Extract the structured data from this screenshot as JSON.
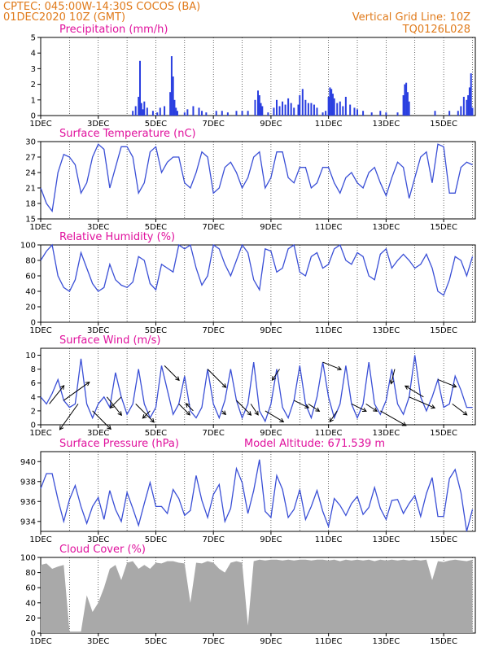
{
  "header": {
    "line1": "CPTEC:   045:00W-14:30S   COCOS (BA)",
    "line2": "01DEC2020 10Z (GMT)",
    "grid_note": "Vertical Grid Line: 10Z",
    "code": "TQ0126L028"
  },
  "x_axis": {
    "labels": [
      "1DEC",
      "3DEC",
      "5DEC",
      "7DEC",
      "9DEC",
      "11DEC",
      "13DEC",
      "15DEC"
    ],
    "label_days": [
      1,
      3,
      5,
      7,
      9,
      11,
      13,
      15
    ],
    "range_days": [
      1,
      16.1
    ]
  },
  "colors": {
    "line": "#3a4fd6",
    "bar": "#2a3fe0",
    "cloud": "#a9a9a9",
    "title": "#e0119d",
    "header": "#e07a1a"
  },
  "chart_data": [
    {
      "type": "bar",
      "title": "Precipitation (mm/h)",
      "ylim": [
        0,
        5
      ],
      "yticks": [
        0,
        1,
        2,
        3,
        4,
        5
      ],
      "x": [
        4.2,
        4.3,
        4.4,
        4.45,
        4.5,
        4.55,
        4.6,
        4.7,
        4.9,
        5.05,
        5.15,
        5.3,
        5.5,
        5.55,
        5.6,
        5.65,
        5.7,
        5.75,
        6.0,
        6.1,
        6.3,
        6.5,
        6.6,
        6.75,
        7.1,
        7.3,
        7.5,
        7.8,
        8.0,
        8.2,
        8.45,
        8.55,
        8.6,
        8.65,
        8.7,
        8.9,
        9.1,
        9.2,
        9.3,
        9.4,
        9.5,
        9.6,
        9.7,
        9.8,
        9.95,
        10.0,
        10.1,
        10.2,
        10.3,
        10.4,
        10.5,
        10.6,
        10.8,
        10.9,
        11.0,
        11.05,
        11.1,
        11.15,
        11.2,
        11.3,
        11.4,
        11.5,
        11.6,
        11.75,
        11.9,
        12.0,
        12.2,
        12.5,
        12.8,
        13.0,
        13.4,
        13.6,
        13.65,
        13.7,
        13.75,
        13.8,
        14.7,
        15.2,
        15.5,
        15.6,
        15.7,
        15.8,
        15.85,
        15.9,
        15.95,
        16.0
      ],
      "values": [
        0.3,
        0.6,
        1.2,
        3.5,
        0.8,
        0.4,
        0.9,
        0.5,
        0.3,
        0.2,
        0.5,
        0.6,
        1.5,
        3.8,
        2.5,
        1.0,
        0.5,
        0.3,
        0.2,
        0.4,
        0.6,
        0.5,
        0.3,
        0.2,
        0.3,
        0.3,
        0.2,
        0.3,
        0.3,
        0.3,
        1.0,
        1.6,
        1.3,
        0.8,
        0.6,
        0.2,
        0.5,
        1.0,
        0.6,
        0.9,
        0.7,
        1.1,
        0.8,
        0.5,
        0.7,
        1.3,
        1.7,
        1.0,
        0.8,
        0.8,
        0.7,
        0.5,
        0.2,
        0.3,
        1.2,
        1.8,
        1.7,
        1.4,
        1.1,
        0.8,
        0.9,
        0.6,
        1.2,
        0.7,
        0.5,
        0.4,
        0.3,
        0.2,
        0.3,
        0.2,
        0.2,
        1.3,
        2.0,
        2.1,
        1.5,
        0.9,
        0.3,
        0.3,
        0.3,
        0.6,
        1.2,
        1.0,
        1.3,
        1.8,
        2.7,
        0.5
      ]
    },
    {
      "type": "line",
      "title": "Surface Temperature (nC)",
      "ylim": [
        15,
        30
      ],
      "yticks": [
        15,
        18,
        21,
        24,
        27,
        30
      ],
      "x": [
        1.0,
        1.2,
        1.4,
        1.6,
        1.8,
        2.0,
        2.2,
        2.4,
        2.6,
        2.8,
        3.0,
        3.2,
        3.4,
        3.6,
        3.8,
        4.0,
        4.2,
        4.4,
        4.6,
        4.8,
        5.0,
        5.2,
        5.4,
        5.6,
        5.8,
        6.0,
        6.2,
        6.4,
        6.6,
        6.8,
        7.0,
        7.2,
        7.4,
        7.6,
        7.8,
        8.0,
        8.2,
        8.4,
        8.6,
        8.8,
        9.0,
        9.2,
        9.4,
        9.6,
        9.8,
        10.0,
        10.2,
        10.4,
        10.6,
        10.8,
        11.0,
        11.2,
        11.4,
        11.6,
        11.8,
        12.0,
        12.2,
        12.4,
        12.6,
        12.8,
        13.0,
        13.2,
        13.4,
        13.6,
        13.8,
        14.0,
        14.2,
        14.4,
        14.6,
        14.8,
        15.0,
        15.2,
        15.4,
        15.6,
        15.8,
        16.0
      ],
      "values": [
        21,
        18,
        16.5,
        24,
        27.5,
        27,
        25.5,
        20,
        22,
        27,
        29.5,
        28.5,
        21,
        25,
        29,
        29,
        27,
        20,
        22,
        28,
        29,
        24,
        26,
        27,
        27,
        22,
        21,
        24,
        28,
        27,
        20,
        21,
        25,
        26,
        24,
        21,
        23,
        27,
        28,
        21,
        23,
        28,
        28,
        23,
        22,
        25,
        25,
        21,
        22,
        25,
        25,
        22,
        20,
        23,
        24,
        22,
        21,
        24,
        25,
        22,
        19.5,
        23,
        26,
        25,
        19,
        23,
        27,
        28,
        22,
        29.5,
        29,
        20,
        20,
        25,
        26,
        25.5
      ]
    },
    {
      "type": "line",
      "title": "Relative Humidity (%)",
      "ylim": [
        0,
        100
      ],
      "yticks": [
        0,
        20,
        40,
        60,
        80,
        100
      ],
      "x": [
        1.0,
        1.2,
        1.4,
        1.6,
        1.8,
        2.0,
        2.2,
        2.4,
        2.6,
        2.8,
        3.0,
        3.2,
        3.4,
        3.6,
        3.8,
        4.0,
        4.2,
        4.4,
        4.6,
        4.8,
        5.0,
        5.2,
        5.4,
        5.6,
        5.8,
        6.0,
        6.2,
        6.4,
        6.6,
        6.8,
        7.0,
        7.2,
        7.4,
        7.6,
        7.8,
        8.0,
        8.2,
        8.4,
        8.6,
        8.8,
        9.0,
        9.2,
        9.4,
        9.6,
        9.8,
        10.0,
        10.2,
        10.4,
        10.6,
        10.8,
        11.0,
        11.2,
        11.4,
        11.6,
        11.8,
        12.0,
        12.2,
        12.4,
        12.6,
        12.8,
        13.0,
        13.2,
        13.4,
        13.6,
        13.8,
        14.0,
        14.2,
        14.4,
        14.6,
        14.8,
        15.0,
        15.2,
        15.4,
        15.6,
        15.8,
        16.0
      ],
      "values": [
        80,
        92,
        100,
        60,
        45,
        40,
        55,
        90,
        70,
        50,
        40,
        45,
        75,
        55,
        48,
        45,
        52,
        85,
        80,
        50,
        42,
        75,
        70,
        65,
        100,
        95,
        100,
        70,
        48,
        60,
        100,
        95,
        75,
        60,
        80,
        100,
        90,
        55,
        42,
        95,
        92,
        65,
        70,
        95,
        100,
        65,
        60,
        85,
        90,
        70,
        75,
        95,
        100,
        80,
        75,
        90,
        85,
        60,
        55,
        88,
        95,
        70,
        80,
        88,
        80,
        70,
        75,
        88,
        70,
        40,
        35,
        55,
        85,
        80,
        60,
        85
      ]
    },
    {
      "type": "line",
      "title": "Surface Wind (m/s)",
      "ylim": [
        0,
        11
      ],
      "yticks": [
        0,
        2,
        4,
        6,
        8,
        10
      ],
      "x": [
        1.0,
        1.2,
        1.4,
        1.6,
        1.8,
        2.0,
        2.2,
        2.4,
        2.6,
        2.8,
        3.0,
        3.2,
        3.4,
        3.6,
        3.8,
        4.0,
        4.2,
        4.4,
        4.6,
        4.8,
        5.0,
        5.2,
        5.4,
        5.6,
        5.8,
        6.0,
        6.2,
        6.4,
        6.6,
        6.8,
        7.0,
        7.2,
        7.4,
        7.6,
        7.8,
        8.0,
        8.2,
        8.4,
        8.6,
        8.8,
        9.0,
        9.2,
        9.4,
        9.6,
        9.8,
        10.0,
        10.2,
        10.4,
        10.6,
        10.8,
        11.0,
        11.2,
        11.4,
        11.6,
        11.8,
        12.0,
        12.2,
        12.4,
        12.6,
        12.8,
        13.0,
        13.2,
        13.4,
        13.6,
        13.8,
        14.0,
        14.2,
        14.4,
        14.6,
        14.8,
        15.0,
        15.2,
        15.4,
        15.6,
        15.8,
        16.0
      ],
      "values": [
        4,
        3,
        4.5,
        6.5,
        3.5,
        2.5,
        3,
        9.5,
        3,
        1,
        3,
        4,
        2.5,
        7.5,
        4,
        1.5,
        3,
        8,
        3,
        1,
        2.5,
        8.5,
        5,
        1.5,
        3,
        7,
        2,
        1,
        2.5,
        8,
        3,
        1,
        3.5,
        8,
        3.5,
        1,
        3,
        9,
        2,
        0.5,
        3,
        8,
        2.5,
        1,
        3.5,
        8.5,
        3,
        1,
        4,
        9,
        4,
        1,
        3,
        8.5,
        3,
        1,
        3,
        9,
        3,
        1.5,
        3.5,
        8,
        3,
        1.5,
        4,
        10,
        4,
        2,
        4,
        6.5,
        2.5,
        3,
        7,
        5,
        2.5,
        2.5
      ]
    },
    {
      "type": "line",
      "title": "Surface Pressure (hPa)",
      "annotation": "Model Altitude: 671.539  m",
      "ylim": [
        933,
        941
      ],
      "yticks": [
        934,
        936,
        938,
        940
      ],
      "x": [
        1.0,
        1.2,
        1.4,
        1.6,
        1.8,
        2.0,
        2.2,
        2.4,
        2.6,
        2.8,
        3.0,
        3.2,
        3.4,
        3.6,
        3.8,
        4.0,
        4.2,
        4.4,
        4.6,
        4.8,
        5.0,
        5.2,
        5.4,
        5.6,
        5.8,
        6.0,
        6.2,
        6.4,
        6.6,
        6.8,
        7.0,
        7.2,
        7.4,
        7.6,
        7.8,
        8.0,
        8.2,
        8.4,
        8.6,
        8.8,
        9.0,
        9.2,
        9.4,
        9.6,
        9.8,
        10.0,
        10.2,
        10.4,
        10.6,
        10.8,
        11.0,
        11.2,
        11.4,
        11.6,
        11.8,
        12.0,
        12.2,
        12.4,
        12.6,
        12.8,
        13.0,
        13.2,
        13.4,
        13.6,
        13.8,
        14.0,
        14.2,
        14.4,
        14.6,
        14.8,
        15.0,
        15.2,
        15.4,
        15.6,
        15.8,
        16.0
      ],
      "values": [
        937.3,
        938.8,
        938.8,
        936.2,
        934.0,
        936.2,
        937.6,
        935.5,
        933.8,
        935.5,
        936.4,
        934.2,
        937.1,
        935.2,
        934.0,
        936.9,
        935.3,
        933.6,
        935.8,
        937.9,
        935.5,
        935.5,
        934.8,
        937.2,
        936.3,
        934.6,
        935.1,
        938.6,
        936.1,
        934.4,
        936.7,
        937.7,
        934.0,
        935.3,
        939.3,
        937.9,
        934.8,
        937.1,
        940.2,
        935.0,
        934.4,
        938.6,
        937.2,
        934.4,
        935.2,
        937.2,
        934.2,
        935.5,
        937.1,
        935.0,
        933.5,
        936.3,
        935.6,
        934.6,
        935.8,
        936.5,
        934.7,
        935.4,
        937.4,
        935.3,
        934.2,
        936.1,
        936.2,
        934.8,
        935.8,
        936.6,
        934.5,
        936.8,
        938.4,
        934.5,
        934.5,
        938.3,
        939.2,
        936.9,
        933.0,
        935.2
      ]
    },
    {
      "type": "area",
      "title": "Cloud Cover (%)",
      "ylim": [
        0,
        100
      ],
      "yticks": [
        0,
        20,
        40,
        60,
        80,
        100
      ],
      "x": [
        1.0,
        1.2,
        1.4,
        1.6,
        1.8,
        2.0,
        2.2,
        2.4,
        2.6,
        2.8,
        3.0,
        3.2,
        3.4,
        3.6,
        3.8,
        4.0,
        4.2,
        4.4,
        4.6,
        4.8,
        5.0,
        5.2,
        5.4,
        5.6,
        5.8,
        6.0,
        6.2,
        6.4,
        6.6,
        6.8,
        7.0,
        7.2,
        7.4,
        7.6,
        7.8,
        8.0,
        8.2,
        8.4,
        8.6,
        8.8,
        9.0,
        9.2,
        9.4,
        9.6,
        9.8,
        10.0,
        10.2,
        10.4,
        10.6,
        10.8,
        11.0,
        11.2,
        11.4,
        11.6,
        11.8,
        12.0,
        12.2,
        12.4,
        12.6,
        12.8,
        13.0,
        13.2,
        13.4,
        13.6,
        13.8,
        14.0,
        14.2,
        14.4,
        14.6,
        14.8,
        15.0,
        15.2,
        15.4,
        15.6,
        15.8,
        16.0
      ],
      "values": [
        90,
        92,
        85,
        88,
        90,
        2,
        2,
        2,
        50,
        28,
        40,
        60,
        85,
        90,
        70,
        93,
        95,
        85,
        90,
        85,
        93,
        92,
        95,
        95,
        93,
        92,
        40,
        93,
        92,
        95,
        93,
        85,
        80,
        93,
        95,
        93,
        10,
        95,
        97,
        96,
        97,
        97,
        96,
        97,
        96,
        97,
        97,
        96,
        97,
        97,
        96,
        97,
        95,
        97,
        96,
        97,
        96,
        97,
        95,
        97,
        96,
        97,
        96,
        97,
        96,
        97,
        96,
        97,
        70,
        95,
        94,
        96,
        97,
        96,
        95,
        97
      ]
    }
  ],
  "wind_vectors": {
    "x": [
      1.3,
      1.8,
      2.3,
      2.8,
      3.3,
      3.8,
      4.3,
      4.8,
      5.3,
      5.8,
      6.3,
      6.8,
      7.3,
      7.8,
      8.3,
      8.8,
      9.3,
      9.8,
      10.3,
      10.8,
      11.3,
      11.8,
      12.3,
      12.8,
      13.3,
      13.8,
      14.3,
      14.8,
      15.3
    ],
    "u": [
      2.0,
      3.5,
      -2.5,
      2.5,
      2.0,
      -1.5,
      2.5,
      -1.0,
      2.0,
      1.5,
      -1.0,
      2.5,
      0.5,
      2.0,
      1.0,
      2.5,
      -1.0,
      2.0,
      1.5,
      2.5,
      -1.0,
      2.0,
      1.5,
      3.5,
      -0.5,
      3.5,
      -2.5,
      2.5,
      2.0
    ],
    "v": [
      2.5,
      2.5,
      -3.5,
      -2.5,
      -2.5,
      -1.5,
      -2.5,
      -1.0,
      -2.0,
      -1.5,
      1.0,
      -2.5,
      -0.5,
      -2.0,
      -1.5,
      -1.5,
      -1.5,
      -1.0,
      -1.0,
      -1.0,
      -1.5,
      -1.0,
      -1.0,
      -2.0,
      -2.0,
      -1.5,
      1.5,
      -1.0,
      -1.5
    ]
  }
}
